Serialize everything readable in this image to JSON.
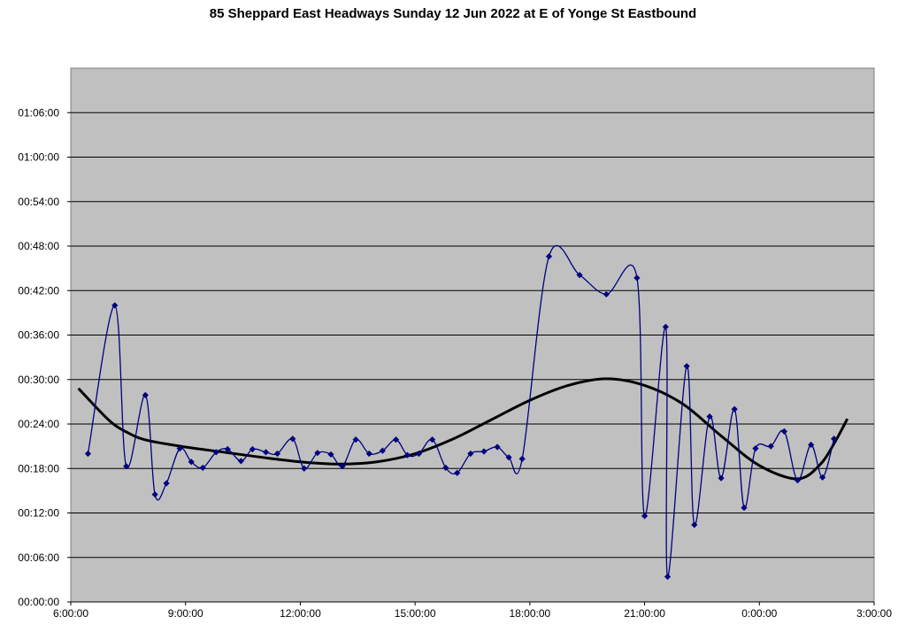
{
  "chart_data": {
    "type": "line",
    "title": "85 Sheppard East Headways Sunday 12 Jun 2022 at E of Yonge St Eastbound",
    "xlabel": "",
    "ylabel": "",
    "x_axis_unit": "hours of day (6 = 6:00:00, 27 = 3:00:00 next day)",
    "y_axis_unit": "minutes",
    "xlim": [
      6,
      27
    ],
    "ylim": [
      0,
      72
    ],
    "x_tick_labels": [
      "6:00:00",
      "9:00:00",
      "12:00:00",
      "15:00:00",
      "18:00:00",
      "21:00:00",
      "0:00:00",
      "3:00:00"
    ],
    "y_tick_labels": [
      "00:00:00",
      "00:06:00",
      "00:12:00",
      "00:18:00",
      "00:24:00",
      "00:30:00",
      "00:36:00",
      "00:42:00",
      "00:48:00",
      "00:54:00",
      "01:00:00",
      "01:06:00"
    ],
    "grid": true,
    "legend": "none",
    "colors": {
      "plot_bg": "#c0c0c0",
      "series": "#000080",
      "trend": "#000000",
      "grid": "#000000"
    },
    "series": [
      {
        "style": "smoothed line with diamond markers",
        "points": [
          [
            6.45,
            20.0
          ],
          [
            7.15,
            40.0
          ],
          [
            7.45,
            18.3
          ],
          [
            7.95,
            27.9
          ],
          [
            8.2,
            14.5
          ],
          [
            8.5,
            16.0
          ],
          [
            8.85,
            20.7
          ],
          [
            9.15,
            18.9
          ],
          [
            9.45,
            18.1
          ],
          [
            9.8,
            20.2
          ],
          [
            10.1,
            20.6
          ],
          [
            10.45,
            19.0
          ],
          [
            10.75,
            20.6
          ],
          [
            11.1,
            20.2
          ],
          [
            11.4,
            20.0
          ],
          [
            11.8,
            22.0
          ],
          [
            12.1,
            18.0
          ],
          [
            12.45,
            20.1
          ],
          [
            12.8,
            19.9
          ],
          [
            13.1,
            18.3
          ],
          [
            13.45,
            21.9
          ],
          [
            13.8,
            20.0
          ],
          [
            14.15,
            20.4
          ],
          [
            14.5,
            21.9
          ],
          [
            14.8,
            19.8
          ],
          [
            15.1,
            20.0
          ],
          [
            15.45,
            21.9
          ],
          [
            15.8,
            18.1
          ],
          [
            16.1,
            17.4
          ],
          [
            16.45,
            20.0
          ],
          [
            16.8,
            20.3
          ],
          [
            17.15,
            20.9
          ],
          [
            17.45,
            19.5
          ],
          [
            17.8,
            19.3
          ],
          [
            18.5,
            46.6
          ],
          [
            19.3,
            44.1
          ],
          [
            20.0,
            41.5
          ],
          [
            20.8,
            43.7
          ],
          [
            21.0,
            11.6
          ],
          [
            21.55,
            37.1
          ],
          [
            21.6,
            3.4
          ],
          [
            22.1,
            31.8
          ],
          [
            22.3,
            10.4
          ],
          [
            22.7,
            25.0
          ],
          [
            23.0,
            16.7
          ],
          [
            23.35,
            26.0
          ],
          [
            23.6,
            12.7
          ],
          [
            23.9,
            20.7
          ],
          [
            24.3,
            21.0
          ],
          [
            24.65,
            23.0
          ],
          [
            25.0,
            16.4
          ],
          [
            25.35,
            21.2
          ],
          [
            25.65,
            16.8
          ],
          [
            25.95,
            22.0
          ]
        ]
      },
      {
        "style": "trend line",
        "points": [
          [
            6.2,
            28.8
          ],
          [
            7.0,
            24.5
          ],
          [
            7.5,
            22.8
          ],
          [
            8.0,
            21.8
          ],
          [
            9.0,
            20.9
          ],
          [
            10.0,
            20.2
          ],
          [
            11.0,
            19.5
          ],
          [
            12.0,
            18.9
          ],
          [
            13.0,
            18.6
          ],
          [
            14.0,
            18.9
          ],
          [
            15.0,
            20.0
          ],
          [
            16.0,
            22.0
          ],
          [
            17.0,
            24.6
          ],
          [
            18.0,
            27.2
          ],
          [
            19.0,
            29.2
          ],
          [
            20.0,
            30.1
          ],
          [
            21.0,
            29.2
          ],
          [
            22.0,
            26.7
          ],
          [
            23.0,
            22.4
          ],
          [
            24.0,
            18.4
          ],
          [
            25.0,
            16.6
          ],
          [
            25.6,
            18.6
          ],
          [
            26.0,
            21.8
          ],
          [
            26.3,
            24.7
          ]
        ]
      }
    ]
  }
}
